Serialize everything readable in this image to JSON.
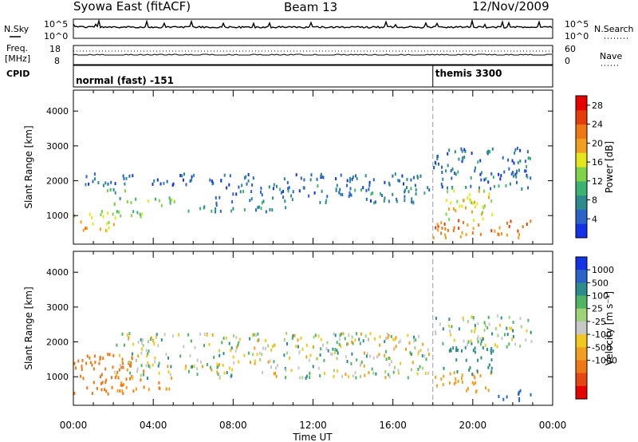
{
  "header": {
    "title": "Syowa East (fitACF)",
    "beam": "Beam 13",
    "date": "12/Nov/2009"
  },
  "top_panel": {
    "nsky_label": "N.Sky",
    "nsearch_label": "N.Search",
    "left_ticks": [
      "10^5",
      "10^0"
    ],
    "right_ticks": [
      "10^5",
      "10^0"
    ]
  },
  "freq_panel": {
    "freq_label_line1": "Freq.",
    "freq_label_line2": "[MHz]",
    "nave_label": "Nave",
    "left_ticks": [
      "18",
      "8"
    ],
    "right_ticks": [
      "60",
      "0"
    ]
  },
  "cpid_panel": {
    "label": "CPID",
    "modes": [
      {
        "name": "normal (fast) -151",
        "start_hour": 0
      },
      {
        "name": "themis 3300",
        "start_hour": 18
      }
    ]
  },
  "colors": {
    "power_scale": [
      "#1432e6",
      "#2a64c8",
      "#2e8b8b",
      "#3cb371",
      "#7fd24a",
      "#e6e61e",
      "#f0a01e",
      "#f07814",
      "#e63c0a",
      "#e60000"
    ],
    "velocity_scale": [
      "#1432e6",
      "#2a64c8",
      "#2e8b8b",
      "#50b464",
      "#a0d278",
      "#c8c8c8",
      "#f0c81e",
      "#f0a01e",
      "#f07814",
      "#e64614",
      "#e60000"
    ]
  },
  "chart_data": [
    {
      "type": "heatmap",
      "title": "",
      "xlabel": "Time UT",
      "ylabel": "Slant Range [km]",
      "xlim": [
        0,
        24
      ],
      "ylim": [
        180,
        4600
      ],
      "x_tick_labels": [
        "00:00",
        "04:00",
        "08:00",
        "12:00",
        "16:00",
        "20:00",
        "00:00"
      ],
      "y_ticks": [
        1000,
        2000,
        3000,
        4000
      ],
      "colorbar": {
        "label": "Power [dB]",
        "ticks": [
          4,
          8,
          12,
          16,
          20,
          24,
          28
        ],
        "range": [
          0,
          30
        ]
      },
      "echo_regions": [
        {
          "t0": 0.0,
          "t1": 2.0,
          "r0": 550,
          "r1": 900,
          "value": 18
        },
        {
          "t0": 0.0,
          "t1": 3.5,
          "r0": 950,
          "r1": 1250,
          "value": 14
        },
        {
          "t0": 2.0,
          "t1": 5.5,
          "r0": 1300,
          "r1": 1550,
          "value": 12
        },
        {
          "t0": 1.5,
          "t1": 3.0,
          "r0": 1650,
          "r1": 1850,
          "value": 10
        },
        {
          "t0": 5.0,
          "t1": 11.0,
          "r0": 1150,
          "r1": 1350,
          "value": 8
        },
        {
          "t0": 0.5,
          "t1": 17.5,
          "r0": 1900,
          "r1": 2250,
          "value": 5
        },
        {
          "t0": 7.0,
          "t1": 17.8,
          "r0": 1400,
          "r1": 1900,
          "value": 6
        },
        {
          "t0": 18.0,
          "t1": 23.0,
          "r0": 400,
          "r1": 900,
          "value": 22
        },
        {
          "t0": 18.5,
          "t1": 21.0,
          "r0": 900,
          "r1": 1800,
          "value": 16
        },
        {
          "t0": 18.0,
          "t1": 23.0,
          "r0": 1800,
          "r1": 3000,
          "value": 6
        }
      ]
    },
    {
      "type": "heatmap",
      "title": "",
      "xlabel": "Time UT",
      "ylabel": "Slant Range [km]",
      "xlim": [
        0,
        24
      ],
      "ylim": [
        180,
        4600
      ],
      "x_tick_labels": [
        "00:00",
        "04:00",
        "08:00",
        "12:00",
        "16:00",
        "20:00",
        "00:00"
      ],
      "y_ticks": [
        1000,
        2000,
        3000,
        4000
      ],
      "colorbar": {
        "label": "Velocity [m s⁻¹]",
        "ticks": [
          "1000",
          "500",
          "100",
          "25",
          "-25",
          "-100",
          "-500",
          "-1000"
        ]
      },
      "echo_regions": [
        {
          "t0": 0.0,
          "t1": 3.5,
          "r0": 550,
          "r1": 1700,
          "value": -450
        },
        {
          "t0": 2.0,
          "t1": 5.0,
          "r0": 600,
          "r1": 900,
          "value": -250
        },
        {
          "t0": 2.0,
          "t1": 17.8,
          "r0": 1000,
          "r1": 2300,
          "value": 0
        },
        {
          "t0": 18.0,
          "t1": 21.0,
          "r0": 600,
          "r1": 1200,
          "value": -150
        },
        {
          "t0": 18.5,
          "t1": 21.0,
          "r0": 1100,
          "r1": 1900,
          "value": 150
        },
        {
          "t0": 21.0,
          "t1": 23.0,
          "r0": 350,
          "r1": 650,
          "value": 400
        },
        {
          "t0": 18.0,
          "t1": 23.0,
          "r0": 1900,
          "r1": 2800,
          "value": 20
        }
      ]
    }
  ]
}
